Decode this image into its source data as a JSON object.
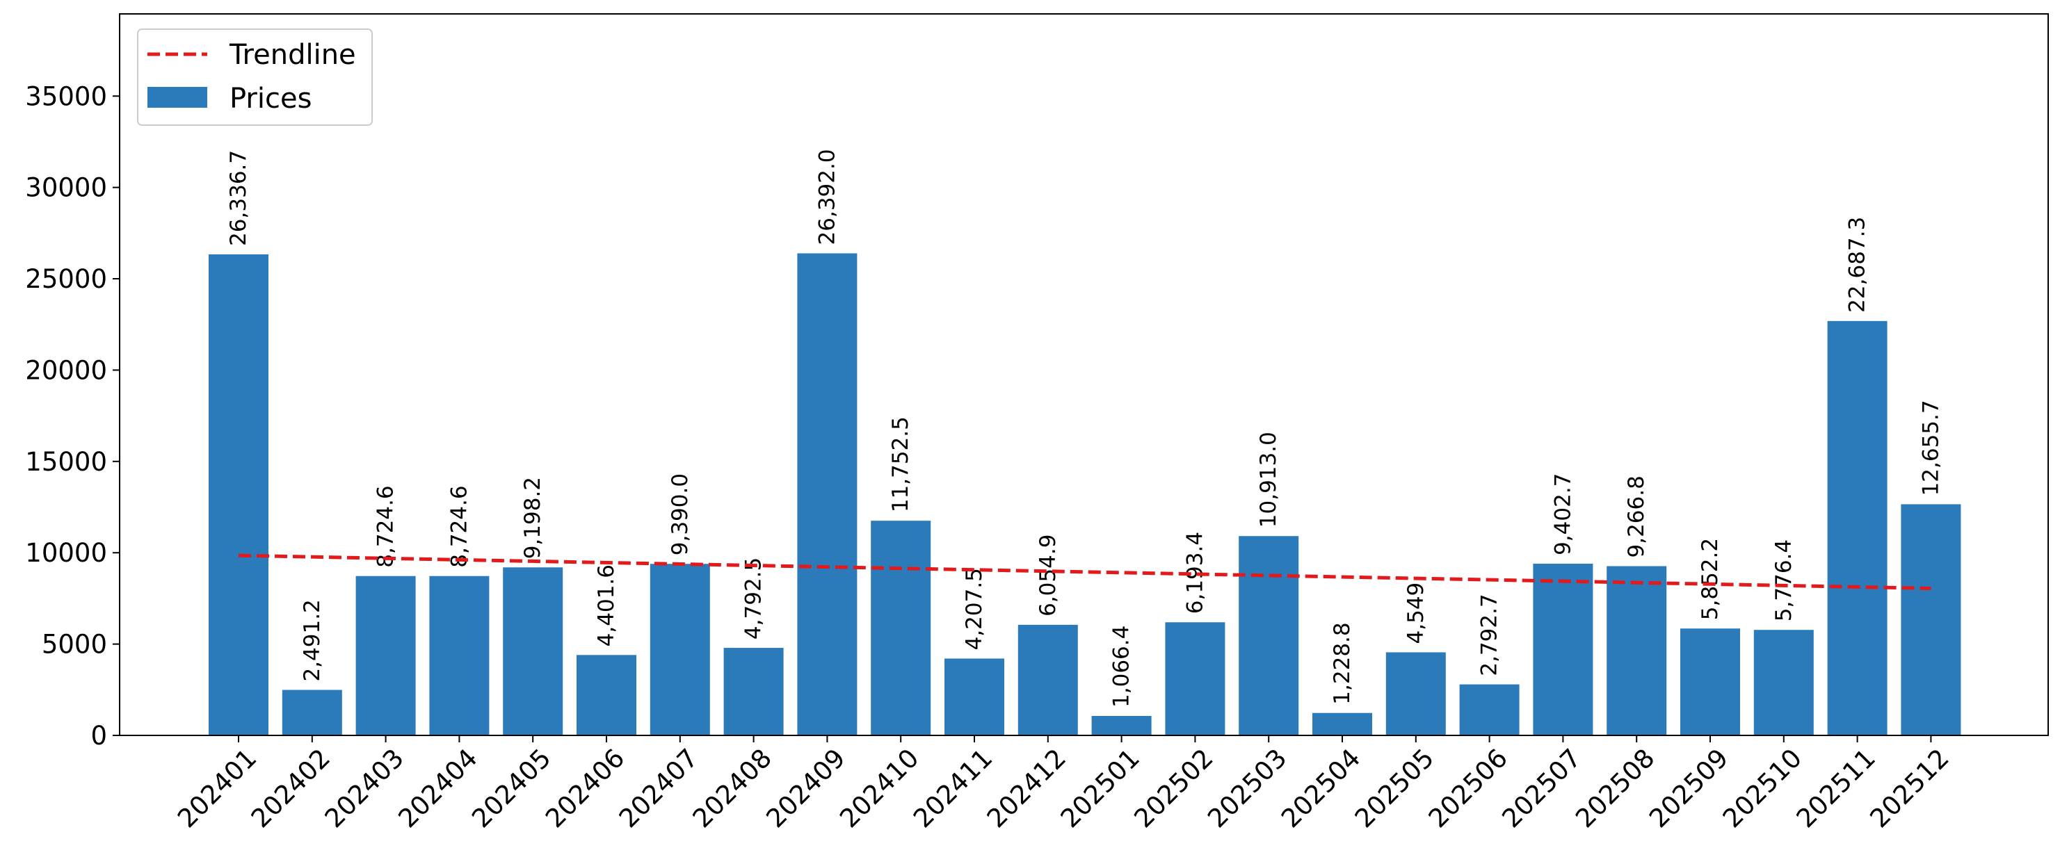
{
  "chart_data": {
    "type": "bar",
    "title": "",
    "xlabel": "",
    "ylabel": "",
    "ylim": [
      0,
      39500
    ],
    "yticks": [
      0,
      5000,
      10000,
      15000,
      20000,
      25000,
      30000,
      35000
    ],
    "categories": [
      "202401",
      "202402",
      "202403",
      "202404",
      "202405",
      "202406",
      "202407",
      "202408",
      "202409",
      "202410",
      "202411",
      "202412",
      "202501",
      "202502",
      "202503",
      "202504",
      "202505",
      "202506",
      "202507",
      "202508",
      "202509",
      "202510",
      "202511",
      "202512"
    ],
    "series": [
      {
        "name": "Prices",
        "type": "bar",
        "color": "#2b7bba",
        "values": [
          26336.7,
          2491.2,
          8724.6,
          8724.6,
          9198.2,
          4401.6,
          9390.0,
          4792.5,
          26392.0,
          11752.5,
          4207.5,
          6054.9,
          1066.4,
          6193.4,
          10913.0,
          1228.8,
          4549,
          2792.7,
          9402.7,
          9266.8,
          5852.2,
          5776.4,
          22687.3,
          12655.7
        ],
        "labels": [
          "26,336.7",
          "2,491.2",
          "8,724.6",
          "8,724.6",
          "9,198.2",
          "4,401.6",
          "9,390.0",
          "4,792.5",
          "26,392.0",
          "11,752.5",
          "4,207.5",
          "6,054.9",
          "1,066.4",
          "6,193.4",
          "10,913.0",
          "1,228.8",
          "4,549",
          "2,792.7",
          "9,402.7",
          "9,266.8",
          "5,852.2",
          "5,776.4",
          "22,687.3",
          "12,655.7"
        ]
      },
      {
        "name": "Trendline",
        "type": "line",
        "style": "dashed",
        "color": "#e31a1c",
        "start": 9850,
        "end": 8050
      }
    ],
    "legend": {
      "position": "top-left",
      "entries": [
        "Trendline",
        "Prices"
      ]
    },
    "grid": false
  }
}
